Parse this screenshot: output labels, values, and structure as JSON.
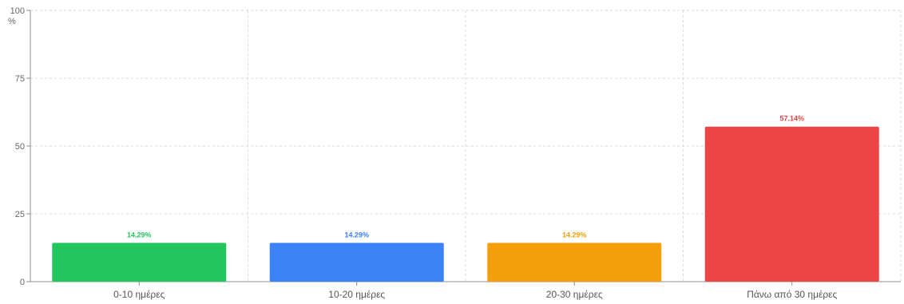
{
  "chart_data": {
    "type": "bar",
    "categories": [
      "0-10 ημέρες",
      "10-20 ημέρες",
      "20-30 ημέρες",
      "Πάνω από 30 ημέρες"
    ],
    "values": [
      14.29,
      14.29,
      14.29,
      57.14
    ],
    "data_labels": [
      "14.29%",
      "14.29%",
      "14.29%",
      "57.14%"
    ],
    "colors": [
      "#22c55e",
      "#3b82f6",
      "#f59e0b",
      "#ef4444"
    ],
    "ylabel": "%",
    "ylim": [
      0,
      100
    ],
    "yticks": [
      0,
      25,
      50,
      75,
      100
    ],
    "ytick_labels": [
      "0",
      "25",
      "50",
      "75",
      "100"
    ],
    "grid": true,
    "legend": "none"
  }
}
